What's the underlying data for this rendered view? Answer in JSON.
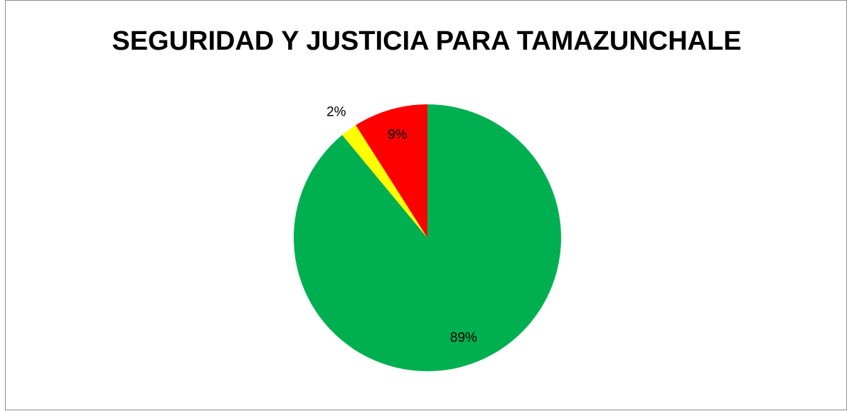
{
  "chart_data": {
    "type": "pie",
    "title": "SEGURIDAD Y JUSTICIA PARA TAMAZUNCHALE",
    "values": [
      89,
      2,
      9
    ],
    "value_labels": [
      "89%",
      "2%",
      "9%"
    ],
    "colors": [
      "#00b050",
      "#ffff00",
      "#ff0000"
    ]
  }
}
